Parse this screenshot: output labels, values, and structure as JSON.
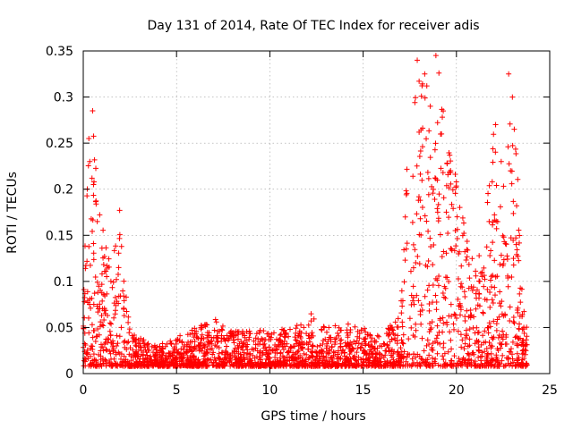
{
  "chart_data": {
    "type": "scatter",
    "title": "Day 131 of 2014, Rate Of TEC Index for receiver adis",
    "xlabel": "GPS time / hours",
    "ylabel": "ROTI / TECUs",
    "xlim": [
      0,
      25
    ],
    "ylim": [
      0,
      0.35
    ],
    "xticks": [
      0,
      5,
      10,
      15,
      20,
      25
    ],
    "yticks": [
      0,
      0.05,
      0.1,
      0.15,
      0.2,
      0.25,
      0.3,
      0.35
    ],
    "grid": true,
    "marker": "+",
    "color": "#ff0000",
    "series": [
      {
        "name": "ROTI",
        "envelope_x": [
          0,
          0.25,
          0.5,
          1,
          1.5,
          2,
          2.5,
          3,
          4,
          5,
          6,
          7,
          8,
          9,
          10,
          11,
          12,
          12.25,
          12.5,
          13,
          14,
          15,
          16,
          17,
          17.5,
          18,
          18.5,
          19,
          19.5,
          20,
          20.5,
          21,
          21.5,
          22,
          22.5,
          23,
          23.5,
          23.8
        ],
        "envelope_y_max": [
          0.07,
          0.26,
          0.28,
          0.16,
          0.13,
          0.17,
          0.05,
          0.04,
          0.03,
          0.04,
          0.05,
          0.06,
          0.045,
          0.05,
          0.045,
          0.05,
          0.055,
          0.07,
          0.06,
          0.05,
          0.055,
          0.05,
          0.04,
          0.07,
          0.29,
          0.34,
          0.33,
          0.345,
          0.25,
          0.22,
          0.15,
          0.12,
          0.16,
          0.27,
          0.2,
          0.32,
          0.13,
          0.04
        ],
        "highlights": [
          {
            "x": 0.3,
            "y": 0.255
          },
          {
            "x": 0.35,
            "y": 0.23
          },
          {
            "x": 0.5,
            "y": 0.285
          },
          {
            "x": 0.55,
            "y": 0.205
          },
          {
            "x": 0.75,
            "y": 0.165
          },
          {
            "x": 1.95,
            "y": 0.177
          },
          {
            "x": 17.9,
            "y": 0.34
          },
          {
            "x": 18.3,
            "y": 0.325
          },
          {
            "x": 18.6,
            "y": 0.29
          },
          {
            "x": 18.9,
            "y": 0.345
          },
          {
            "x": 19.2,
            "y": 0.26
          },
          {
            "x": 22.1,
            "y": 0.27
          },
          {
            "x": 22.4,
            "y": 0.23
          },
          {
            "x": 22.8,
            "y": 0.325
          },
          {
            "x": 23.0,
            "y": 0.3
          },
          {
            "x": 23.1,
            "y": 0.265
          },
          {
            "x": 22.9,
            "y": 0.22
          }
        ],
        "floor_y": 0.008
      }
    ]
  }
}
